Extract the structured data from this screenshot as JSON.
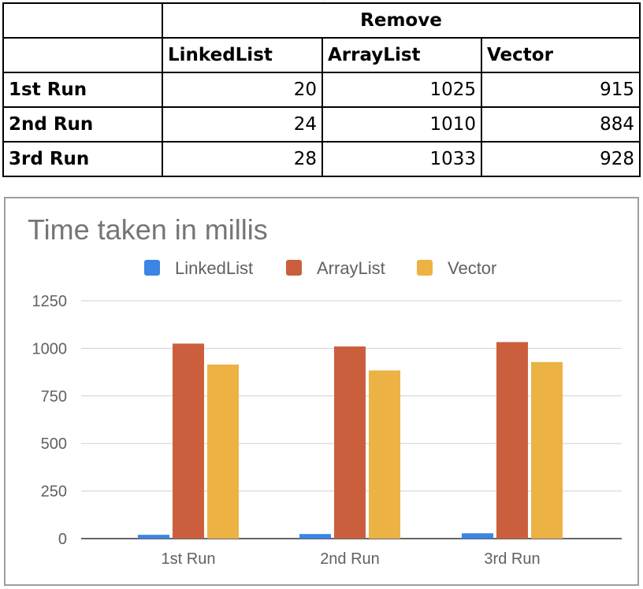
{
  "table": {
    "group_header": "Remove",
    "columns": [
      "LinkedList",
      "ArrayList",
      "Vector"
    ],
    "rows": [
      {
        "label": "1st Run",
        "values": [
          "20",
          "1025",
          "915"
        ]
      },
      {
        "label": "2nd Run",
        "values": [
          "24",
          "1010",
          "884"
        ]
      },
      {
        "label": "3rd Run",
        "values": [
          "28",
          "1033",
          "928"
        ]
      }
    ]
  },
  "chart_data": {
    "type": "bar",
    "title": "Time taken in millis",
    "xlabel": "",
    "ylabel": "",
    "categories": [
      "1st Run",
      "2nd Run",
      "3rd Run"
    ],
    "series": [
      {
        "name": "LinkedList",
        "values": [
          20,
          24,
          28
        ],
        "color": "#3b85e4"
      },
      {
        "name": "ArrayList",
        "values": [
          1025,
          1010,
          1033
        ],
        "color": "#cb5f3d"
      },
      {
        "name": "Vector",
        "values": [
          915,
          884,
          928
        ],
        "color": "#ecb243"
      }
    ],
    "ylim": [
      0,
      1250
    ],
    "yticks": [
      "0",
      "250",
      "500",
      "750",
      "1000",
      "1250"
    ],
    "grid": true,
    "legend_position": "top"
  }
}
